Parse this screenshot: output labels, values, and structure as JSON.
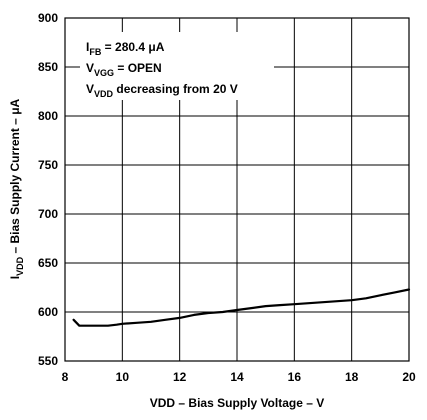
{
  "chart_data": {
    "type": "line",
    "title": "",
    "xlabel": "VDD – Bias Supply Voltage – V",
    "ylabel": {
      "prefix": "I",
      "subscript": "VDD",
      "rest": " – Bias Supply Current – μA"
    },
    "xlim": [
      8,
      20
    ],
    "ylim": [
      550,
      900
    ],
    "xticks": [
      8,
      10,
      12,
      14,
      16,
      18,
      20
    ],
    "yticks": [
      550,
      600,
      650,
      700,
      750,
      800,
      850,
      900
    ],
    "grid": true,
    "annotations": [
      {
        "prefix": "I",
        "subscript": "FB",
        "rest": " = 280.4 μA"
      },
      {
        "prefix": "V",
        "subscript": "VGG",
        "rest": " = OPEN"
      },
      {
        "prefix": "V",
        "subscript": "VDD",
        "rest": " decreasing from 20 V"
      }
    ],
    "series": [
      {
        "color": "#000000",
        "x": [
          8.3,
          8.5,
          9.0,
          9.5,
          9.8,
          10.0,
          10.5,
          11.0,
          11.5,
          12.0,
          12.5,
          13.0,
          13.5,
          14.0,
          14.5,
          15.0,
          15.5,
          16.0,
          16.5,
          17.0,
          17.5,
          18.0,
          18.5,
          19.0,
          19.5,
          20.0
        ],
        "y": [
          592,
          586,
          586,
          586,
          587,
          588,
          589,
          590,
          592,
          594,
          597,
          599,
          600,
          602,
          604,
          606,
          607,
          608,
          609,
          610,
          611,
          612,
          614,
          617,
          620,
          623
        ]
      }
    ]
  }
}
